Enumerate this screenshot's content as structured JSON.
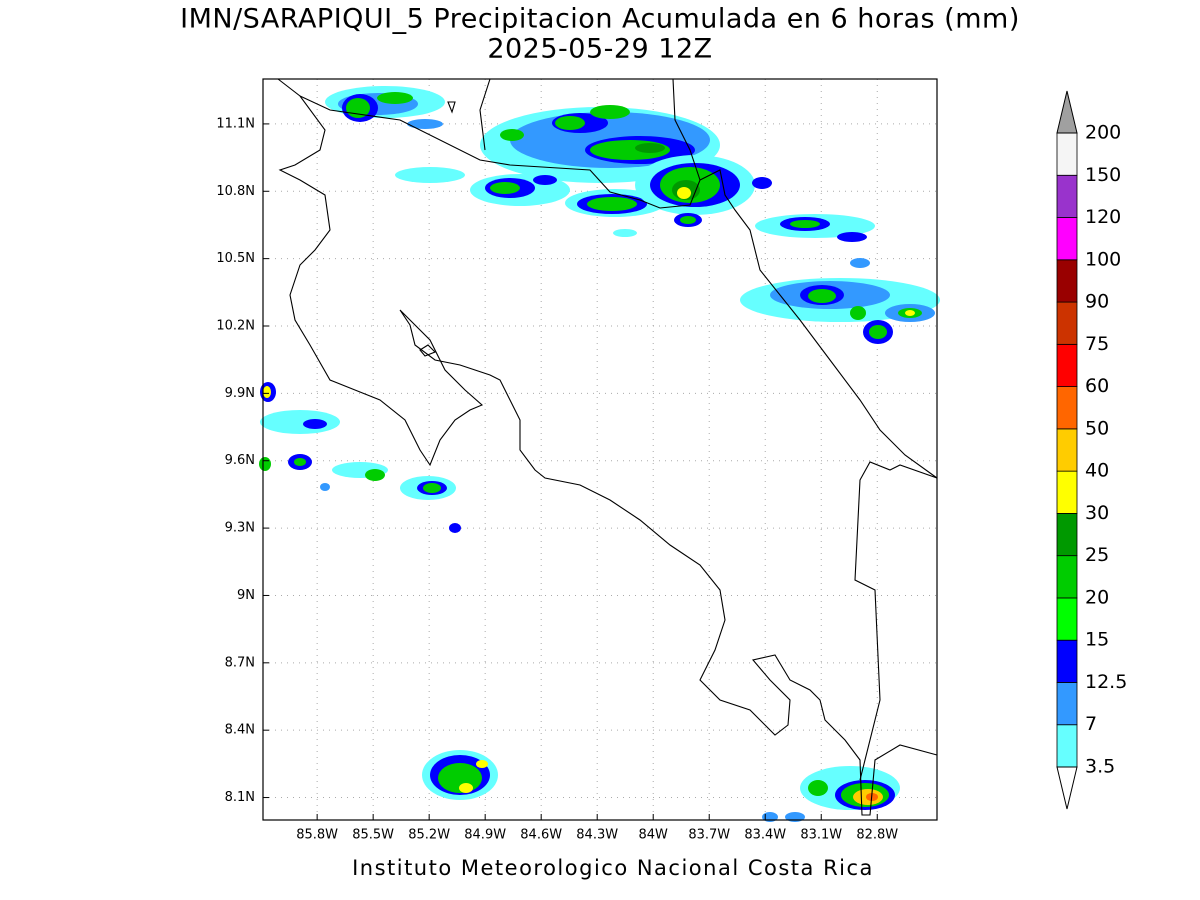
{
  "title": "IMN/SARAPIQUI_5 Precipitacion Acumulada en 6 horas (mm)",
  "subtitle": "2025-05-29 12Z",
  "footer": "Instituto Meteorologico Nacional Costa Rica",
  "map": {
    "lonlim": [
      -86.09,
      -82.48
    ],
    "latlim": [
      8.0,
      11.3
    ],
    "grid": true,
    "lon_ticks": [
      {
        "value": -85.8,
        "label": "85.8W"
      },
      {
        "value": -85.5,
        "label": "85.5W"
      },
      {
        "value": -85.2,
        "label": "85.2W"
      },
      {
        "value": -84.9,
        "label": "84.9W"
      },
      {
        "value": -84.6,
        "label": "84.6W"
      },
      {
        "value": -84.3,
        "label": "84.3W"
      },
      {
        "value": -84.0,
        "label": "84W"
      },
      {
        "value": -83.7,
        "label": "83.7W"
      },
      {
        "value": -83.4,
        "label": "83.4W"
      },
      {
        "value": -83.1,
        "label": "83.1W"
      },
      {
        "value": -82.8,
        "label": "82.8W"
      }
    ],
    "lat_ticks": [
      {
        "value": 8.1,
        "label": "8.1N"
      },
      {
        "value": 8.4,
        "label": "8.4N"
      },
      {
        "value": 8.7,
        "label": "8.7N"
      },
      {
        "value": 9.0,
        "label": "9N"
      },
      {
        "value": 9.3,
        "label": "9.3N"
      },
      {
        "value": 9.6,
        "label": "9.6N"
      },
      {
        "value": 9.9,
        "label": "9.9N"
      },
      {
        "value": 10.2,
        "label": "10.2N"
      },
      {
        "value": 10.5,
        "label": "10.5N"
      },
      {
        "value": 10.8,
        "label": "10.8N"
      },
      {
        "value": 11.1,
        "label": "11.1N"
      }
    ]
  },
  "colorbar": {
    "levels": [
      3.5,
      7,
      12.5,
      15,
      20,
      25,
      30,
      40,
      50,
      60,
      75,
      90,
      100,
      120,
      150,
      200
    ],
    "colors": [
      "#66ffff",
      "#3399ff",
      "#0000ff",
      "#00ff00",
      "#00cc00",
      "#009900",
      "#ffff00",
      "#ffcc00",
      "#ff6600",
      "#ff0000",
      "#cc3300",
      "#990000",
      "#ff00ff",
      "#9933cc",
      "#f5f5f5"
    ],
    "under_color": "#ffffff",
    "over_color": "#a0a0a0"
  }
}
